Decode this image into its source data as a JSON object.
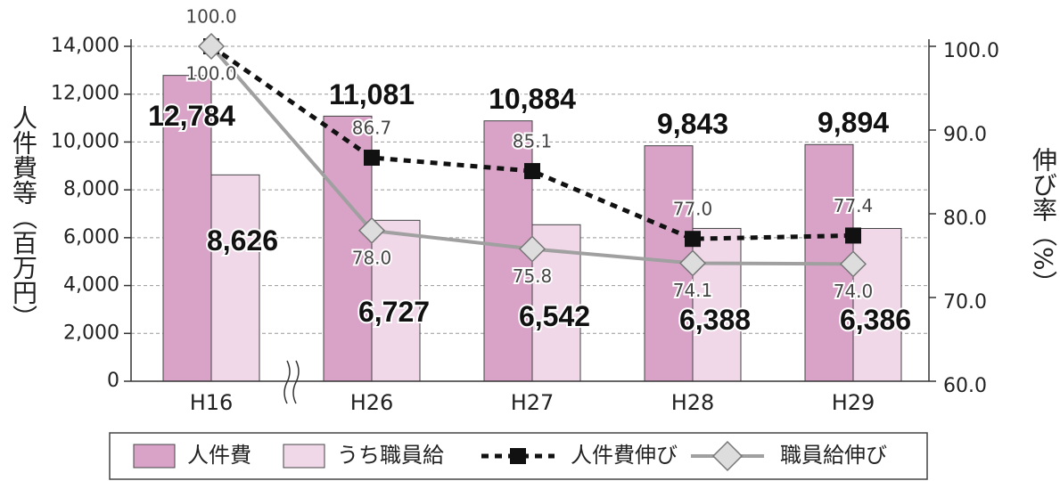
{
  "chart_data": {
    "type": "bar",
    "y_label": "人件費等（百万円）",
    "y2_label": "伸び率（%）",
    "categories": [
      "H16",
      "H26",
      "H27",
      "H28",
      "H29"
    ],
    "series": [
      {
        "name": "人件費",
        "color": "#d9a3c8",
        "values": [
          12784,
          11081,
          10884,
          9843,
          9894
        ],
        "value_labels": [
          "12,784",
          "11,081",
          "10,884",
          "9,843",
          "9,894"
        ]
      },
      {
        "name": "うち職員給",
        "color": "#f0d8e8",
        "values": [
          8626,
          6727,
          6542,
          6388,
          6386
        ],
        "value_labels": [
          "8,626",
          "6,727",
          "6,542",
          "6,388",
          "6,386"
        ]
      },
      {
        "name": "人件費伸び",
        "type": "line",
        "axis": "y2",
        "color": "#111111",
        "values": [
          100.0,
          86.7,
          85.1,
          77.0,
          77.4
        ],
        "value_labels": [
          "100.0",
          "86.7",
          "85.1",
          "77.0",
          "77.4"
        ]
      },
      {
        "name": "職員給伸び",
        "type": "line",
        "axis": "y2",
        "color": "#a0a0a0",
        "values": [
          100.0,
          78.0,
          75.8,
          74.1,
          74.0
        ],
        "value_labels": [
          "100.0",
          "78.0",
          "75.8",
          "74.1",
          "74.0"
        ]
      }
    ],
    "ylim": [
      0,
      14000
    ],
    "yticks": [
      0,
      {
        "value": 2000,
        "label": "2,000"
      },
      {
        "value": 4000,
        "label": "4,000"
      },
      {
        "value": 6000,
        "label": "6,000"
      },
      {
        "value": 8000,
        "label": "8,000"
      },
      {
        "value": 10000,
        "label": "10,000"
      },
      {
        "value": 12000,
        "label": "12,000"
      },
      {
        "value": 14000,
        "label": "14,000"
      }
    ],
    "y2lim": [
      60,
      100
    ],
    "y2ticks": [
      {
        "value": 60,
        "label": "60.0"
      },
      {
        "value": 70,
        "label": "70.0"
      },
      {
        "value": 80,
        "label": "80.0"
      },
      {
        "value": 90,
        "label": "90.0"
      },
      {
        "value": 100,
        "label": "100.0"
      }
    ],
    "grid": true,
    "legend": "bottom"
  }
}
